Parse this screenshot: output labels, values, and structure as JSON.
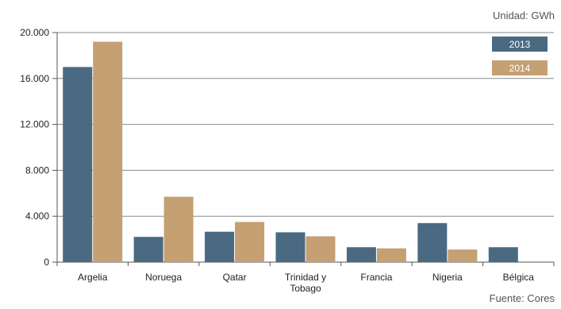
{
  "chart_data": {
    "type": "bar",
    "unit_label": "Unidad: GWh",
    "source": "Fuente: Cores",
    "categories": [
      [
        "Argelia"
      ],
      [
        "Noruega"
      ],
      [
        "Qatar"
      ],
      [
        "Trinidad y",
        "Tobago"
      ],
      [
        "Francia"
      ],
      [
        "Nigeria"
      ],
      [
        "Bélgica"
      ]
    ],
    "series": [
      {
        "name": "2013",
        "color": "#4a6a82",
        "values": [
          17000,
          2200,
          2650,
          2600,
          1300,
          3400,
          1300
        ]
      },
      {
        "name": "2014",
        "color": "#c4a073",
        "values": [
          19200,
          5700,
          3500,
          2250,
          1200,
          1100,
          0
        ]
      }
    ],
    "ylim": [
      0,
      20000
    ],
    "yticks": [
      {
        "value": 0,
        "label": "0"
      },
      {
        "value": 4000,
        "label": "4.000"
      },
      {
        "value": 8000,
        "label": "8.000"
      },
      {
        "value": 12000,
        "label": "12.000"
      },
      {
        "value": 16000,
        "label": "16.000"
      },
      {
        "value": 20000,
        "label": "20.000"
      }
    ],
    "grid": true,
    "legend_position": "top-right"
  }
}
